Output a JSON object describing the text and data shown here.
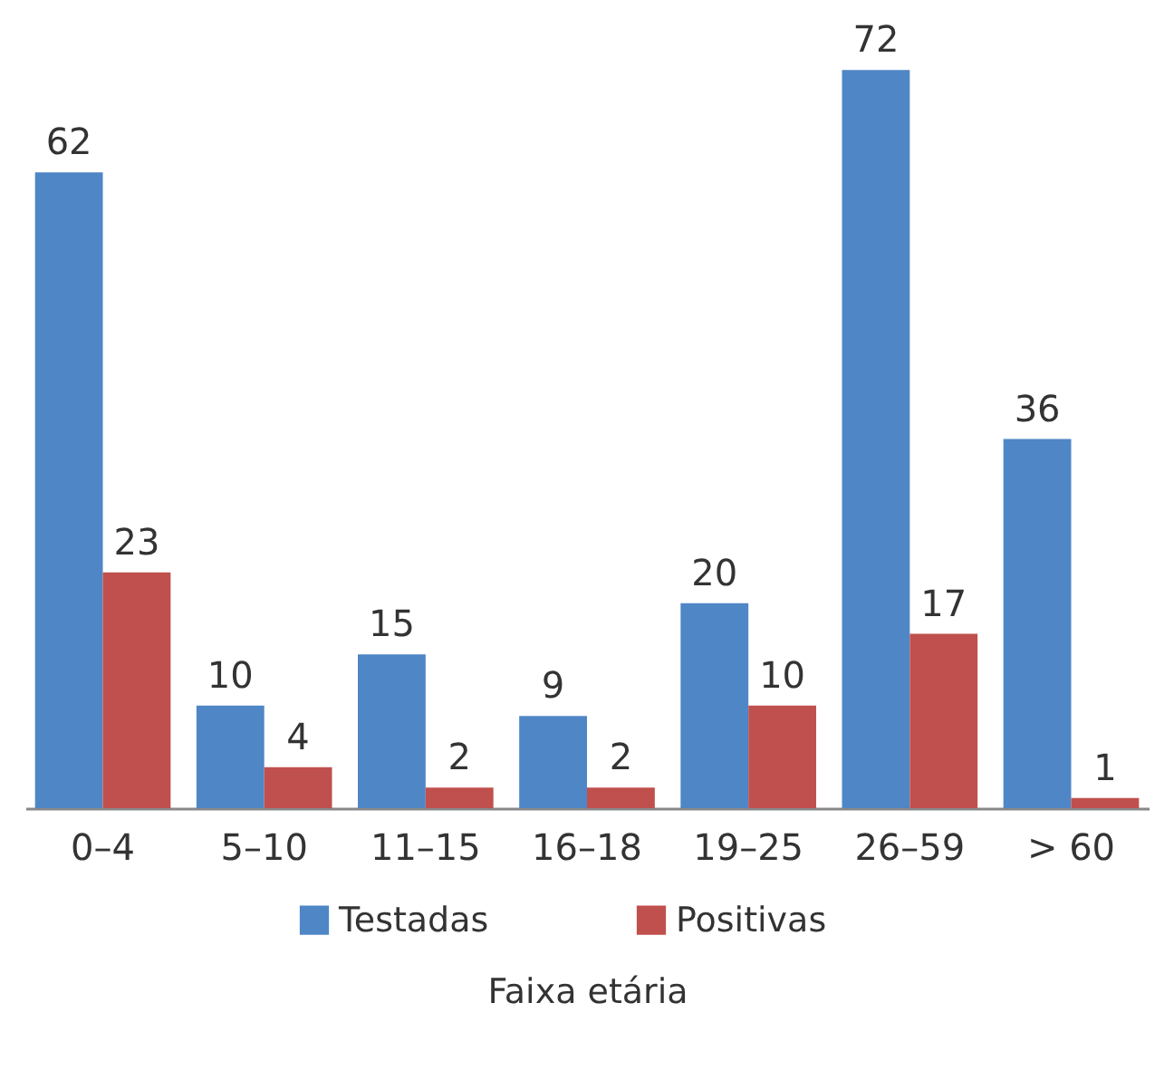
{
  "chart_data": {
    "type": "bar",
    "xlabel": "Faixa etária",
    "categories": [
      "0–4",
      "5–10",
      "11–15",
      "16–18",
      "19–25",
      "26–59",
      "> 60"
    ],
    "series": [
      {
        "name": "Testadas",
        "color": "#4f86c6",
        "values": [
          62,
          10,
          15,
          9,
          20,
          72,
          36
        ]
      },
      {
        "name": "Positivas",
        "color": "#c0504d",
        "values": [
          23,
          4,
          2,
          2,
          10,
          17,
          1
        ]
      }
    ],
    "data_labels": true,
    "legend": "bottom",
    "tick_labels": "x"
  }
}
